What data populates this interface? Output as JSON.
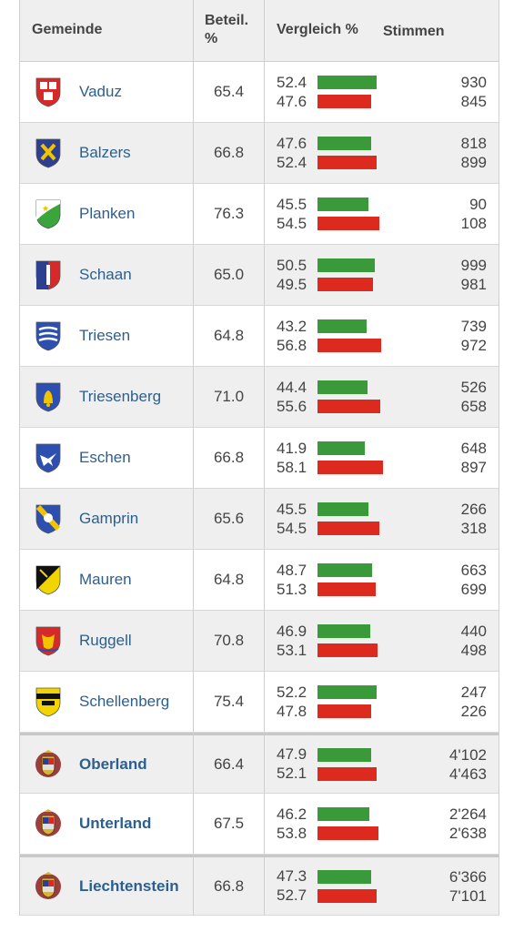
{
  "header": {
    "gemeinde": "Gemeinde",
    "beteil_line1": "Beteil.",
    "beteil_line2": "%",
    "vergleich": "Vergleich %",
    "stimmen": "Stimmen"
  },
  "colors": {
    "yes": "#3a9a3a",
    "no": "#dd2a1f",
    "link": "#2c5f8f"
  },
  "rows": [
    {
      "name": "Vaduz",
      "crest": "vaduz-crest-icon",
      "beteil": "65.4",
      "yes_pct": "52.4",
      "no_pct": "47.6",
      "yes_votes": "930",
      "no_votes": "845"
    },
    {
      "name": "Balzers",
      "crest": "balzers-crest-icon",
      "beteil": "66.8",
      "yes_pct": "47.6",
      "no_pct": "52.4",
      "yes_votes": "818",
      "no_votes": "899"
    },
    {
      "name": "Planken",
      "crest": "planken-crest-icon",
      "beteil": "76.3",
      "yes_pct": "45.5",
      "no_pct": "54.5",
      "yes_votes": "90",
      "no_votes": "108"
    },
    {
      "name": "Schaan",
      "crest": "schaan-crest-icon",
      "beteil": "65.0",
      "yes_pct": "50.5",
      "no_pct": "49.5",
      "yes_votes": "999",
      "no_votes": "981"
    },
    {
      "name": "Triesen",
      "crest": "triesen-crest-icon",
      "beteil": "64.8",
      "yes_pct": "43.2",
      "no_pct": "56.8",
      "yes_votes": "739",
      "no_votes": "972"
    },
    {
      "name": "Triesenberg",
      "crest": "triesenberg-crest-icon",
      "beteil": "71.0",
      "yes_pct": "44.4",
      "no_pct": "55.6",
      "yes_votes": "526",
      "no_votes": "658"
    },
    {
      "name": "Eschen",
      "crest": "eschen-crest-icon",
      "beteil": "66.8",
      "yes_pct": "41.9",
      "no_pct": "58.1",
      "yes_votes": "648",
      "no_votes": "897"
    },
    {
      "name": "Gamprin",
      "crest": "gamprin-crest-icon",
      "beteil": "65.6",
      "yes_pct": "45.5",
      "no_pct": "54.5",
      "yes_votes": "266",
      "no_votes": "318"
    },
    {
      "name": "Mauren",
      "crest": "mauren-crest-icon",
      "beteil": "64.8",
      "yes_pct": "48.7",
      "no_pct": "51.3",
      "yes_votes": "663",
      "no_votes": "699"
    },
    {
      "name": "Ruggell",
      "crest": "ruggell-crest-icon",
      "beteil": "70.8",
      "yes_pct": "46.9",
      "no_pct": "53.1",
      "yes_votes": "440",
      "no_votes": "498"
    },
    {
      "name": "Schellenberg",
      "crest": "schellenberg-crest-icon",
      "beteil": "75.4",
      "yes_pct": "52.2",
      "no_pct": "47.8",
      "yes_votes": "247",
      "no_votes": "226"
    }
  ],
  "regions": [
    {
      "name": "Oberland",
      "crest": "liechtenstein-crest-icon",
      "beteil": "66.4",
      "yes_pct": "47.9",
      "no_pct": "52.1",
      "yes_votes": "4'102",
      "no_votes": "4'463"
    },
    {
      "name": "Unterland",
      "crest": "liechtenstein-crest-icon",
      "beteil": "67.5",
      "yes_pct": "46.2",
      "no_pct": "53.8",
      "yes_votes": "2'264",
      "no_votes": "2'638"
    }
  ],
  "total": {
    "name": "Liechtenstein",
    "crest": "liechtenstein-crest-icon",
    "beteil": "66.8",
    "yes_pct": "47.3",
    "no_pct": "52.7",
    "yes_votes": "6'366",
    "no_votes": "7'101"
  }
}
